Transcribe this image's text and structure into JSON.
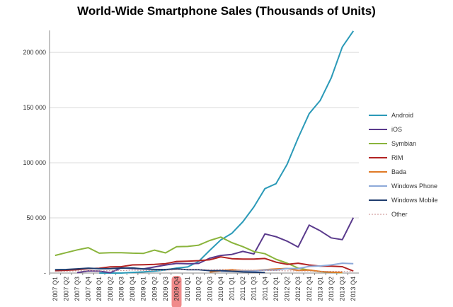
{
  "chart_data": {
    "type": "line",
    "title": "World-Wide Smartphone Sales (Thousands of Units)",
    "xlabel": "",
    "ylabel": "",
    "ylim": [
      0,
      220000
    ],
    "yticks": [
      0,
      50000,
      100000,
      150000,
      200000
    ],
    "ytick_labels": [
      "-",
      "50 000",
      "100 000",
      "150 000",
      "200 000"
    ],
    "grid": "horizontal",
    "legend_position": "right",
    "highlighted_category": "2009 Q4",
    "categories": [
      "2007 Q1",
      "2007 Q2",
      "2007 Q3",
      "2007 Q4",
      "2008 Q1",
      "2008 Q2",
      "2008 Q3",
      "2008 Q4",
      "2009 Q1",
      "2009 Q2",
      "2009 Q3",
      "2009 Q4",
      "2010 Q1",
      "2010 Q2",
      "2010 Q3",
      "2010 Q4",
      "2011 Q1",
      "2011 Q2",
      "2011 Q3",
      "2011 Q4",
      "2012 Q1",
      "2012 Q2",
      "2012 Q3",
      "2012 Q4",
      "2013 Q1",
      "2013 Q2",
      "2013 Q3",
      "2013 Q4"
    ],
    "series": [
      {
        "name": "Android",
        "color": "#2b9ab8",
        "dashed": false,
        "values": [
          null,
          null,
          null,
          null,
          0,
          0,
          0,
          600,
          1000,
          1800,
          2800,
          4500,
          5500,
          10500,
          20500,
          30000,
          36000,
          46500,
          60000,
          76500,
          81000,
          98500,
          122500,
          144500,
          156500,
          177000,
          205000,
          219500
        ]
      },
      {
        "name": "iOS",
        "color": "#5a3a8c",
        "dashed": false,
        "values": [
          null,
          null,
          300,
          1900,
          1700,
          300,
          4700,
          4100,
          3800,
          5500,
          7300,
          8700,
          8400,
          8700,
          13500,
          16000,
          16900,
          19600,
          17300,
          35500,
          33000,
          28900,
          23600,
          43500,
          38300,
          31900,
          30300,
          50200
        ]
      },
      {
        "name": "Symbian",
        "color": "#8ab43c",
        "dashed": false,
        "values": [
          16000,
          18500,
          21000,
          23000,
          18000,
          18500,
          18500,
          18000,
          17800,
          20800,
          18300,
          23900,
          24100,
          25300,
          29500,
          32600,
          27600,
          23900,
          19500,
          17500,
          12500,
          9000,
          4500,
          2600,
          1300,
          700,
          300,
          null
        ]
      },
      {
        "name": "RIM",
        "color": "#b22222",
        "dashed": false,
        "values": [
          2100,
          2500,
          3000,
          4000,
          4300,
          5600,
          5800,
          7400,
          7500,
          7800,
          8500,
          10500,
          10800,
          11200,
          12000,
          14700,
          13000,
          12700,
          12700,
          13200,
          9900,
          7900,
          8900,
          7300,
          6200,
          6200,
          5800,
          1800
        ]
      },
      {
        "name": "Bada",
        "color": "#e07a26",
        "dashed": false,
        "values": [
          null,
          null,
          null,
          null,
          null,
          null,
          null,
          null,
          null,
          null,
          null,
          null,
          null,
          null,
          900,
          2000,
          3000,
          2100,
          2100,
          3100,
          3700,
          4200,
          2300,
          2700,
          1500,
          800,
          600,
          null
        ]
      },
      {
        "name": "Windows Phone",
        "color": "#8da9d9",
        "dashed": false,
        "values": [
          null,
          null,
          null,
          null,
          null,
          null,
          null,
          null,
          null,
          null,
          null,
          null,
          null,
          null,
          null,
          1600,
          1600,
          1700,
          1700,
          2800,
          2700,
          4100,
          4100,
          6000,
          6400,
          7400,
          8900,
          8500
        ]
      },
      {
        "name": "Windows Mobile",
        "color": "#1f3c6e",
        "dashed": false,
        "values": [
          3000,
          3200,
          3800,
          4400,
          3900,
          4000,
          4500,
          4700,
          3700,
          3300,
          3200,
          3700,
          3100,
          3100,
          2200,
          2200,
          1600,
          1000,
          700,
          500,
          null,
          null,
          null,
          null,
          null,
          null,
          null,
          null
        ]
      },
      {
        "name": "Other",
        "color": "#c88a8a",
        "dashed": true,
        "values": [
          1500,
          1600,
          2000,
          2200,
          2000,
          2100,
          2200,
          2600,
          2300,
          2400,
          2500,
          3000,
          3100,
          3200,
          3000,
          3300,
          3000,
          2800,
          2600,
          2300,
          2200,
          2000,
          1900,
          1800,
          1600,
          1600,
          1500,
          1500
        ]
      }
    ]
  }
}
